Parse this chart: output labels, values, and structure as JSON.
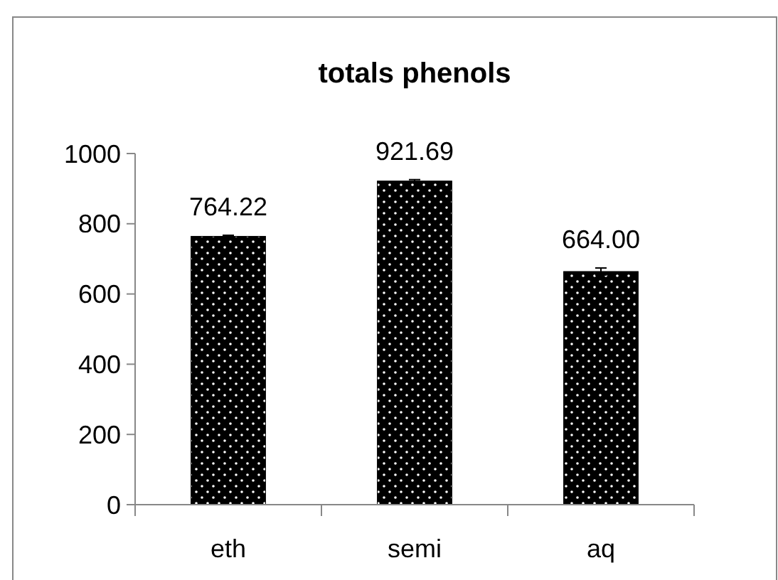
{
  "chart_data": {
    "type": "bar",
    "title": "totals phenols",
    "categories": [
      "eth",
      "semi",
      "aq"
    ],
    "values": [
      764.22,
      921.69,
      664.0
    ],
    "value_labels": [
      "764.22",
      "921.69",
      "664.00"
    ],
    "errors": [
      3,
      4,
      10
    ],
    "color": "#000000",
    "ylim": [
      0,
      1000
    ],
    "yticks": [
      0,
      200,
      400,
      600,
      800,
      1000
    ],
    "grid": false
  }
}
